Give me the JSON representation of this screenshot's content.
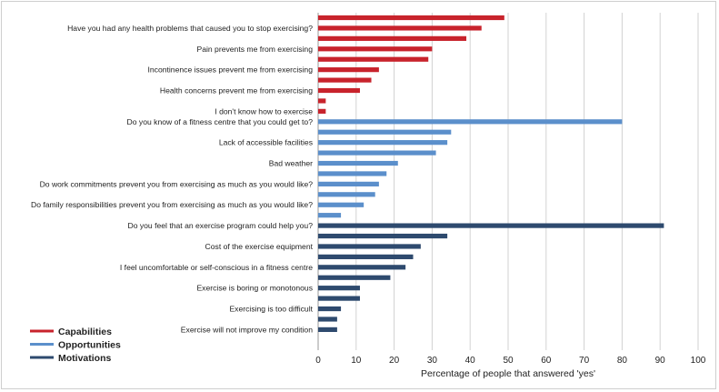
{
  "chart_data": {
    "type": "bar",
    "orientation": "horizontal",
    "xlabel": "Percentage of people that answered 'yes'",
    "xlim": [
      0,
      100
    ],
    "xticks": [
      0,
      10,
      20,
      30,
      40,
      50,
      60,
      70,
      80,
      90,
      100
    ],
    "grid": "vertical",
    "legend_position": "bottom-left",
    "series": [
      {
        "name": "Capabilities",
        "color": "#c8232c",
        "values": [
          49,
          43,
          39,
          30,
          29,
          16,
          14,
          11,
          2,
          2
        ]
      },
      {
        "name": "Opportunities",
        "color": "#5b8fcb",
        "values": [
          80,
          35,
          34,
          31,
          21,
          18,
          16,
          15,
          12,
          6
        ]
      },
      {
        "name": "Motivations",
        "color": "#2e4a6e",
        "values": [
          91,
          34,
          27,
          25,
          23,
          19,
          11,
          11,
          6,
          5,
          5
        ]
      }
    ],
    "category_labels": [
      "",
      "Have you had any health problems that caused you to stop exercising?",
      "",
      "Pain prevents me from exercising",
      "",
      "Incontinence issues prevent me from exercising",
      "",
      "Health concerns prevent me from exercising",
      "",
      "I don't know how to exercise",
      "Do you know of a fitness centre that you could get to?",
      "",
      "Lack of accessible facilities",
      "",
      "Bad weather",
      "",
      "Do work commitments prevent you from exercising as much as you would like?",
      "",
      "Do family responsibilities prevent you from exercising as much as you would like?",
      "",
      "Do you feel that an exercise program could help you?",
      "",
      "Cost of the exercise equipment",
      "",
      "I feel uncomfortable or self-conscious in a fitness centre",
      "",
      "Exercise is boring or monotonous",
      "",
      "Exercising is too difficult",
      "",
      "Exercise will not improve my condition"
    ]
  }
}
